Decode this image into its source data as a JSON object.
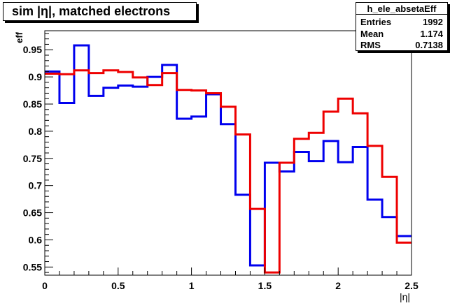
{
  "chart_data": {
    "type": "line",
    "title": "sim |η|, matched electrons",
    "xlabel": "|η|",
    "ylabel": "eff",
    "xlim": [
      0,
      2.5
    ],
    "ylim": [
      0.535,
      0.985
    ],
    "xticks": [
      0,
      0.5,
      1,
      1.5,
      2,
      2.5
    ],
    "xtick_labels": [
      "0",
      "0.5",
      "1",
      "1.5",
      "2",
      "2.5"
    ],
    "yticks": [
      0.55,
      0.6,
      0.65,
      0.7,
      0.75,
      0.8,
      0.85,
      0.9,
      0.95
    ],
    "ytick_labels": [
      "0.55",
      "0.6",
      "0.65",
      "0.7",
      "0.75",
      "0.8",
      "0.85",
      "0.9",
      "0.95"
    ],
    "grid": false,
    "bin_edges": [
      0,
      0.1,
      0.2,
      0.3,
      0.4,
      0.5,
      0.6,
      0.7,
      0.8,
      0.9,
      1.0,
      1.1,
      1.2,
      1.3,
      1.4,
      1.5,
      1.6,
      1.7,
      1.8,
      1.9,
      2.0,
      2.1,
      2.2,
      2.3,
      2.4,
      2.5
    ],
    "series": [
      {
        "color": "#0000ee",
        "values": [
          0.91,
          0.852,
          0.958,
          0.865,
          0.88,
          0.884,
          0.882,
          0.9,
          0.922,
          0.823,
          0.827,
          0.868,
          0.813,
          0.683,
          0.553,
          0.742,
          0.726,
          0.762,
          0.745,
          0.782,
          0.743,
          0.771,
          0.674,
          0.642,
          0.607
        ]
      },
      {
        "color": "#ee0000",
        "values": [
          0.906,
          0.905,
          0.912,
          0.907,
          0.912,
          0.909,
          0.899,
          0.885,
          0.907,
          0.876,
          0.875,
          0.87,
          0.845,
          0.794,
          0.657,
          0.54,
          0.742,
          0.786,
          0.797,
          0.836,
          0.86,
          0.833,
          0.773,
          0.716,
          0.595
        ]
      }
    ]
  },
  "stats": {
    "name": "h_ele_absetaEff",
    "rows": [
      {
        "label": "Entries",
        "value": "1992"
      },
      {
        "label": "Mean",
        "value": "1.174"
      },
      {
        "label": "RMS",
        "value": "0.7138"
      }
    ]
  }
}
